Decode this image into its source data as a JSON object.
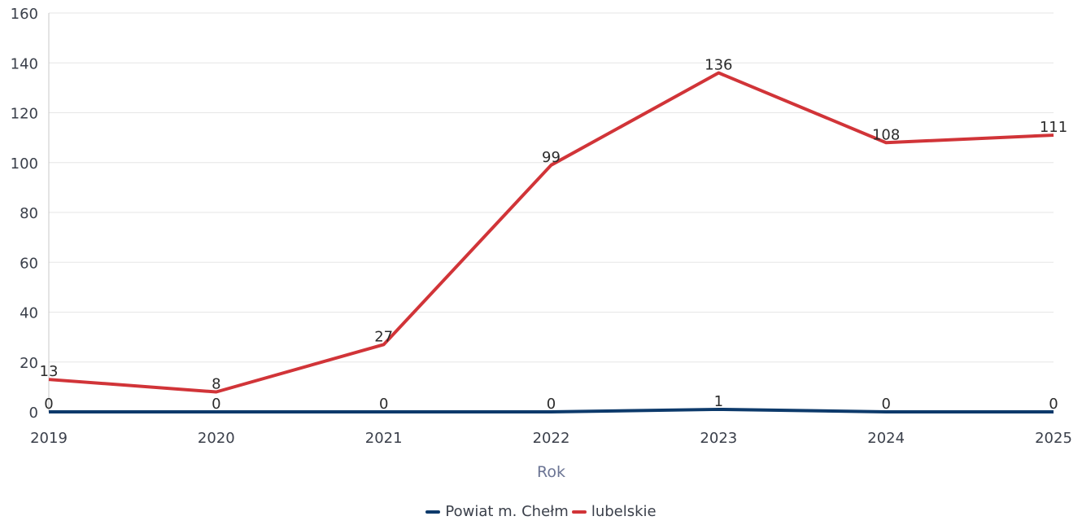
{
  "chart_data": {
    "type": "line",
    "title": "",
    "xlabel": "Rok",
    "ylabel": "",
    "x": [
      "2019",
      "2020",
      "2021",
      "2022",
      "2023",
      "2024",
      "2025"
    ],
    "ylim": [
      0,
      160
    ],
    "yticks": [
      "0",
      "20",
      "40",
      "60",
      "80",
      "100",
      "120",
      "140",
      "160"
    ],
    "grid": true,
    "legend_position": "bottom-center",
    "series": [
      {
        "name": "Powiat m. Chełm",
        "color": "#0d3a6b",
        "values": [
          0,
          0,
          0,
          0,
          1,
          0,
          0
        ],
        "labels": [
          "0",
          "0",
          "0",
          "0",
          "1",
          "0",
          "0"
        ]
      },
      {
        "name": "lubelskie",
        "color": "#d13438",
        "values": [
          13,
          8,
          27,
          99,
          136,
          108,
          111
        ],
        "labels": [
          "13",
          "8",
          "27",
          "99",
          "136",
          "108",
          "111"
        ]
      }
    ]
  }
}
